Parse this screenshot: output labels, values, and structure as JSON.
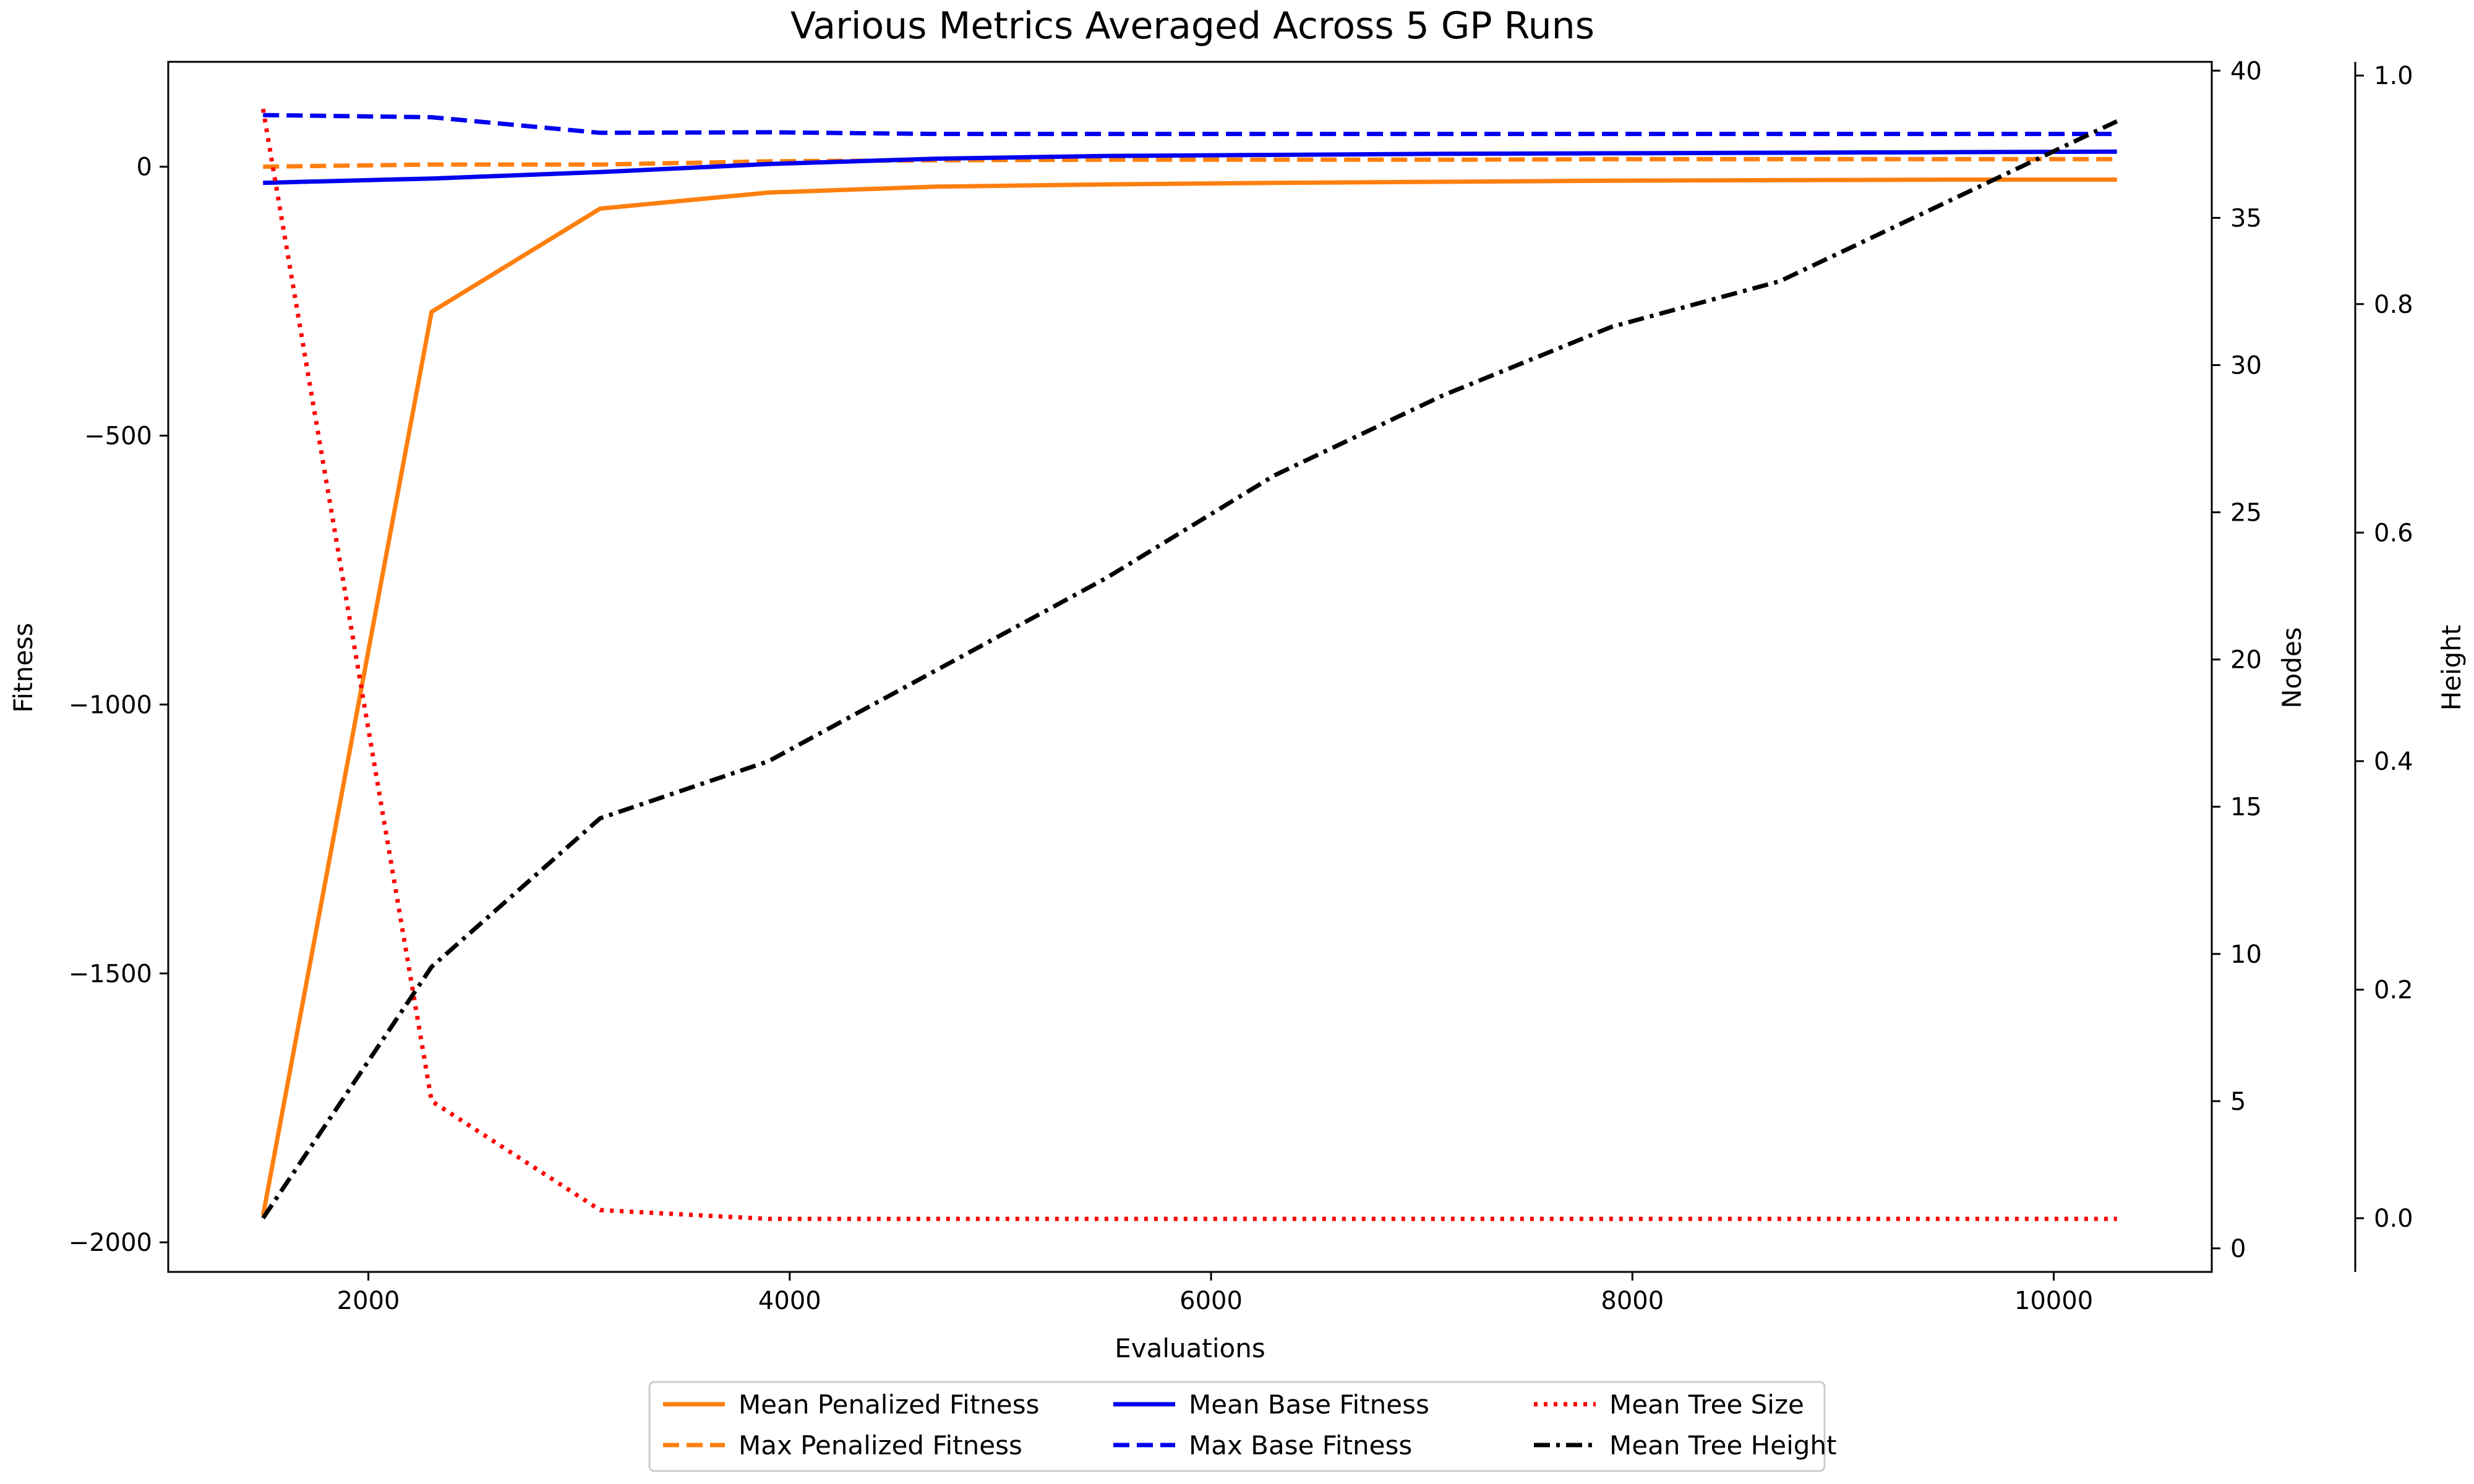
{
  "chart_data": {
    "type": "line",
    "title": "Various Metrics Averaged Across 5 GP Runs",
    "xlabel": "Evaluations",
    "xlim": [
      1050,
      10750
    ],
    "xticks": [
      2000,
      4000,
      6000,
      8000,
      10000
    ],
    "axes": {
      "fitness": {
        "label": "Fitness",
        "ylim": [
          -2055,
          195
        ],
        "ticks": [
          -2000,
          -1500,
          -1000,
          -500,
          0
        ],
        "tick_labels": [
          "−2000",
          "−1500",
          "−1000",
          "−500",
          "0"
        ]
      },
      "nodes": {
        "label": "Nodes",
        "ylim": [
          -0.8,
          40.3
        ],
        "ticks": [
          0,
          5,
          10,
          15,
          20,
          25,
          30,
          35,
          40
        ],
        "tick_labels": [
          "0",
          "5",
          "10",
          "15",
          "20",
          "25",
          "30",
          "35",
          "40"
        ]
      },
      "height": {
        "label": "Height",
        "ylim": [
          -0.047,
          1.012
        ],
        "ticks": [
          0.0,
          0.2,
          0.4,
          0.6,
          0.8,
          1.0
        ],
        "tick_labels": [
          "0.0",
          "0.2",
          "0.4",
          "0.6",
          "0.8",
          "1.0"
        ]
      }
    },
    "series": [
      {
        "name": "Mean Penalized Fitness",
        "axis": "fitness",
        "color": "#ff7f0e",
        "style": "solid",
        "x": [
          1500,
          2300,
          3100,
          3900,
          4700,
          5500,
          6300,
          7100,
          7900,
          8700,
          9500,
          10300
        ],
        "y": [
          -1950,
          -270,
          -78,
          -48,
          -37,
          -33,
          -30,
          -28,
          -26,
          -25,
          -24,
          -24
        ]
      },
      {
        "name": "Max Penalized Fitness",
        "axis": "fitness",
        "color": "#ff7f0e",
        "style": "dashed",
        "x": [
          1500,
          2300,
          3100,
          3900,
          4700,
          5500,
          6300,
          7100,
          7900,
          8700,
          9500,
          10300
        ],
        "y": [
          0,
          4,
          4,
          10,
          12,
          13,
          13,
          13,
          14,
          14,
          14,
          14
        ]
      },
      {
        "name": "Mean Base Fitness",
        "axis": "fitness",
        "color": "#0000ee",
        "style": "solid",
        "x": [
          1500,
          2300,
          3100,
          3900,
          4700,
          5500,
          6300,
          7100,
          7900,
          8700,
          9500,
          10300
        ],
        "y": [
          -30,
          -22,
          -10,
          5,
          15,
          20,
          22,
          24,
          25,
          26,
          27,
          28
        ]
      },
      {
        "name": "Max Base Fitness",
        "axis": "fitness",
        "color": "#0000ee",
        "style": "dashed",
        "x": [
          1500,
          2300,
          3100,
          3900,
          4700,
          5500,
          6300,
          7100,
          7900,
          8700,
          9500,
          10300
        ],
        "y": [
          96,
          92,
          63,
          64,
          61,
          61,
          61,
          61,
          61,
          61,
          61,
          61
        ]
      },
      {
        "name": "Mean Tree Size",
        "axis": "nodes",
        "color": "#ff0000",
        "style": "dotted",
        "x": [
          1500,
          2300,
          3100,
          3900,
          4700,
          5500,
          6300,
          7100,
          7900,
          8700,
          9500,
          10300
        ],
        "y": [
          38.7,
          5.0,
          1.3,
          1.0,
          1.0,
          1.0,
          1.0,
          1.0,
          1.0,
          1.0,
          1.0,
          1.0
        ]
      },
      {
        "name": "Mean Tree Height",
        "axis": "height",
        "color": "#000000",
        "style": "dashdot",
        "x": [
          1500,
          2300,
          3100,
          3900,
          4700,
          5500,
          6300,
          7100,
          7900,
          8700,
          9500,
          10300
        ],
        "y": [
          0.0,
          0.22,
          0.35,
          0.4,
          0.48,
          0.56,
          0.65,
          0.72,
          0.78,
          0.82,
          0.89,
          0.96
        ]
      }
    ],
    "legend": {
      "placement": "below",
      "columns": 3,
      "entries": [
        "Mean Penalized Fitness",
        "Max Penalized Fitness",
        "Mean Base Fitness",
        "Max Base Fitness",
        "Mean Tree Size",
        "Mean Tree Height"
      ]
    },
    "grid": false
  }
}
